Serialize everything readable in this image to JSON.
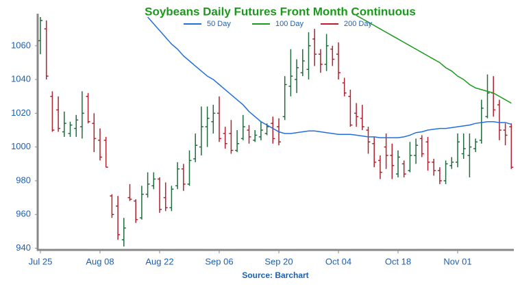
{
  "chart_data": {
    "type": "ohlc",
    "title": "Soybeans Daily Futures Front Month Continuous",
    "source": "Source: Barchart",
    "categories": [
      "Jul 25",
      null,
      null,
      null,
      null,
      null,
      null,
      null,
      null,
      null,
      "Aug 08",
      null,
      null,
      null,
      null,
      null,
      null,
      null,
      null,
      null,
      "Aug 22",
      null,
      null,
      null,
      null,
      null,
      null,
      null,
      null,
      null,
      "Sep 06",
      null,
      null,
      null,
      null,
      null,
      null,
      null,
      null,
      null,
      "Sep 20",
      null,
      null,
      null,
      null,
      null,
      null,
      null,
      null,
      null,
      "Oct 04",
      null,
      null,
      null,
      null,
      null,
      null,
      null,
      null,
      null,
      "Oct 18",
      null,
      null,
      null,
      null,
      null,
      null,
      null,
      null,
      null,
      "Nov 01",
      null,
      null,
      null,
      null,
      null,
      null,
      null,
      null,
      null
    ],
    "open": [
      1063,
      1070,
      1030,
      1022,
      1009,
      1008,
      1011,
      1012,
      1030,
      1014,
      1004,
      1004,
      971,
      965,
      945,
      970,
      968,
      958,
      972,
      977,
      981,
      970,
      964,
      977,
      987,
      978,
      993,
      1000,
      1012,
      1015,
      1020,
      1008,
      1008,
      998,
      1005,
      1010,
      1004,
      1006,
      1008,
      1014,
      1012,
      1018,
      1036,
      1040,
      1044,
      1046,
      1064,
      1055,
      1049,
      1058,
      1055,
      1038,
      1030,
      1020,
      1017,
      1010,
      1002,
      992,
      1000,
      995,
      984,
      990,
      986,
      995,
      1005,
      1003,
      991,
      986,
      980,
      989,
      991,
      996,
      995,
      999,
      1004,
      1018,
      1032,
      1025,
      1010,
      1012
    ],
    "high": [
      1077,
      1075,
      1033,
      1030,
      1021,
      1015,
      1019,
      1033,
      1032,
      1020,
      1011,
      1006,
      972,
      971,
      958,
      978,
      969,
      977,
      985,
      985,
      982,
      979,
      977,
      991,
      990,
      998,
      1008,
      1024,
      1024,
      1025,
      1030,
      1012,
      1016,
      1010,
      1019,
      1013,
      1010,
      1015,
      1014,
      1018,
      1017,
      1042,
      1058,
      1052,
      1058,
      1068,
      1070,
      1058,
      1067,
      1060,
      1062,
      1041,
      1034,
      1026,
      1025,
      1012,
      1006,
      995,
      1008,
      1002,
      998,
      992,
      1003,
      1005,
      1007,
      1006,
      993,
      988,
      992,
      994,
      1008,
      1008,
      1008,
      1005,
      1028,
      1043,
      1042,
      1028,
      1014,
      1014
    ],
    "low": [
      1055,
      1040,
      1009,
      1009,
      1006,
      1006,
      1006,
      1005,
      1014,
      997,
      992,
      988,
      958,
      945,
      941,
      968,
      955,
      957,
      970,
      975,
      961,
      962,
      962,
      975,
      974,
      977,
      991,
      995,
      1000,
      1008,
      1003,
      999,
      996,
      997,
      1004,
      1002,
      1003,
      1004,
      1007,
      1002,
      1001,
      1016,
      1030,
      1032,
      1042,
      1040,
      1048,
      1044,
      1045,
      1048,
      1040,
      1030,
      1012,
      1012,
      1010,
      996,
      988,
      981,
      987,
      981,
      982,
      982,
      985,
      990,
      994,
      986,
      983,
      978,
      978,
      987,
      988,
      993,
      982,
      997,
      1002,
      1017,
      1018,
      1004,
      1001,
      987
    ],
    "close": [
      1075,
      1042,
      1010,
      1011,
      1014,
      1013,
      1016,
      1020,
      1015,
      1005,
      994,
      988,
      960,
      948,
      952,
      969,
      957,
      972,
      978,
      981,
      963,
      964,
      975,
      987,
      978,
      992,
      1001,
      1012,
      1017,
      1020,
      1005,
      1002,
      998,
      1002,
      1012,
      1006,
      1007,
      1010,
      1012,
      1005,
      1003,
      1037,
      1042,
      1047,
      1051,
      1060,
      1055,
      1049,
      1060,
      1052,
      1044,
      1032,
      1013,
      1018,
      1012,
      1003,
      991,
      985,
      995,
      989,
      994,
      984,
      995,
      1001,
      996,
      991,
      986,
      980,
      990,
      991,
      1003,
      999,
      1000,
      1003,
      1023,
      1032,
      1022,
      1010,
      1007,
      988
    ],
    "up_color": "#1e6b3c",
    "down_color": "#b0202e",
    "series": [
      {
        "name": "50 Day",
        "color": "#1f6fe0",
        "values": [
          null,
          null,
          null,
          null,
          null,
          null,
          null,
          null,
          null,
          null,
          null,
          null,
          null,
          null,
          null,
          null,
          null,
          null,
          1077,
          1073,
          1069,
          1065,
          1061,
          1058,
          1054,
          1051,
          1048,
          1045,
          1042,
          1040,
          1037,
          1034,
          1031,
          1028,
          1025,
          1021,
          1018,
          1015,
          1013,
          1011,
          1009,
          1008,
          1008,
          1008.5,
          1009,
          1009.5,
          1009.5,
          1009,
          1008.5,
          1008,
          1007.5,
          1007.5,
          1007.5,
          1007,
          1006.5,
          1006,
          1006,
          1005.5,
          1005.5,
          1005.5,
          1005.5,
          1006,
          1007,
          1008.5,
          1009,
          1010,
          1010.5,
          1011,
          1011,
          1011.5,
          1012,
          1012.5,
          1013,
          1014,
          1014.5,
          1015,
          1015,
          1014.5,
          1014.5,
          1013.5
        ]
      },
      {
        "name": "100 Day",
        "color": "#1a9a1a",
        "values": [
          null,
          null,
          null,
          null,
          null,
          null,
          null,
          null,
          null,
          null,
          null,
          null,
          null,
          null,
          null,
          null,
          null,
          null,
          null,
          null,
          null,
          null,
          null,
          null,
          null,
          null,
          null,
          null,
          null,
          null,
          null,
          null,
          null,
          null,
          null,
          null,
          null,
          null,
          null,
          null,
          null,
          null,
          null,
          null,
          null,
          null,
          null,
          null,
          null,
          null,
          null,
          null,
          null,
          1078,
          1076,
          1074,
          1072,
          1070,
          1068,
          1066,
          1064,
          1062,
          1060,
          1058,
          1056,
          1054,
          1052,
          1050,
          1047,
          1045,
          1042,
          1040,
          1037,
          1035,
          1034,
          1033,
          1032,
          1030,
          1028,
          1026
        ]
      },
      {
        "name": "200 Day",
        "color": "#c0182c",
        "values": [
          null,
          null,
          null,
          null,
          null,
          null,
          null,
          null,
          null,
          null,
          null,
          null,
          null,
          null,
          null,
          null,
          null,
          null,
          null,
          null,
          null,
          null,
          null,
          null,
          null,
          null,
          null,
          null,
          null,
          null,
          null,
          null,
          null,
          null,
          null,
          null,
          null,
          null,
          null,
          null,
          null,
          null,
          null,
          null,
          null,
          null,
          null,
          null,
          null,
          null,
          null,
          null,
          null,
          null,
          null,
          null,
          null,
          null,
          null,
          null,
          null,
          null,
          null,
          null,
          null,
          null,
          null,
          null,
          null,
          null,
          null,
          null,
          null,
          null,
          null,
          null,
          null,
          null,
          null,
          null
        ]
      }
    ],
    "ylim": [
      939,
      1079
    ],
    "yticks": [
      940,
      960,
      980,
      1000,
      1020,
      1040,
      1060
    ],
    "grid": false
  }
}
